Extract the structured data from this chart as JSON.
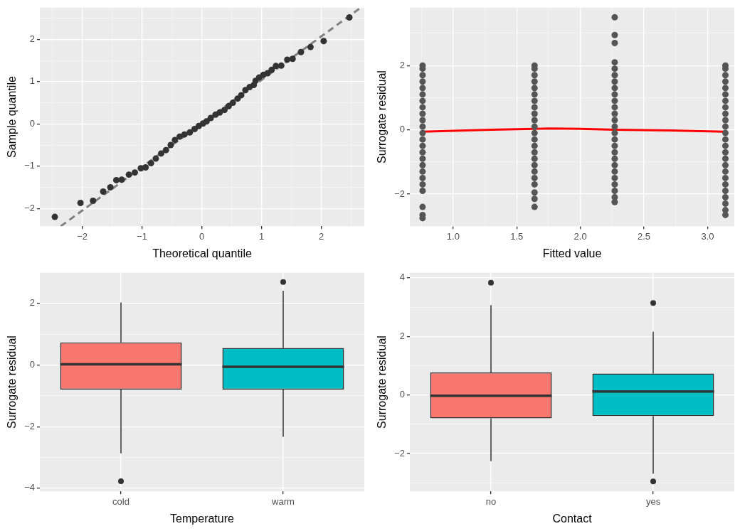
{
  "chart_data": [
    {
      "type": "scatter",
      "xlabel": "Theoretical quantile",
      "ylabel": "Sample quantile",
      "xlim": [
        -2.71,
        2.72
      ],
      "ylim": [
        -2.42,
        2.75
      ],
      "xticks": [
        {
          "value": -2.5,
          "label": null
        },
        {
          "value": -2,
          "label": "−2"
        },
        {
          "value": -1.5,
          "label": null
        },
        {
          "value": -1,
          "label": "−1"
        },
        {
          "value": -0.5,
          "label": null
        },
        0,
        {
          "value": 0.5,
          "label": null
        },
        1,
        {
          "value": 1.5,
          "label": null
        },
        2,
        {
          "value": 2.5,
          "label": null
        }
      ],
      "yticks": [
        {
          "value": -2,
          "label": "−2"
        },
        {
          "value": -1.5,
          "label": null
        },
        {
          "value": -1,
          "label": "−1"
        },
        {
          "value": -0.5,
          "label": null
        },
        0,
        {
          "value": 0.5,
          "label": null
        },
        1,
        {
          "value": 1.5,
          "label": null
        },
        2,
        {
          "value": 2.5,
          "label": null
        }
      ],
      "grid": true,
      "marker": "circle",
      "series": [
        {
          "type": "scatter",
          "color": "#333333",
          "x": [
            -2.46,
            -2.03,
            -1.82,
            -1.65,
            -1.53,
            -1.43,
            -1.34,
            -1.22,
            -1.12,
            -1.02,
            -0.94,
            -0.85,
            -0.77,
            -0.68,
            -0.6,
            -0.52,
            -0.45,
            -0.37,
            -0.29,
            -0.2,
            -0.12,
            -0.05,
            0.02,
            0.08,
            0.15,
            0.23,
            0.3,
            0.38,
            0.45,
            0.52,
            0.6,
            0.66,
            0.73,
            0.8,
            0.87,
            0.9,
            0.96,
            1.03,
            1.1,
            1.17,
            1.24,
            1.33,
            1.43,
            1.52,
            1.66,
            1.82,
            2.04,
            2.47
          ],
          "values": [
            -2.2,
            -1.87,
            -1.82,
            -1.6,
            -1.5,
            -1.33,
            -1.32,
            -1.2,
            -1.15,
            -1.05,
            -1.03,
            -0.93,
            -0.82,
            -0.7,
            -0.62,
            -0.5,
            -0.38,
            -0.3,
            -0.25,
            -0.2,
            -0.12,
            -0.05,
            0.01,
            0.06,
            0.14,
            0.22,
            0.27,
            0.33,
            0.42,
            0.5,
            0.6,
            0.68,
            0.8,
            0.87,
            0.92,
            1.02,
            1.1,
            1.16,
            1.2,
            1.28,
            1.37,
            1.38,
            1.52,
            1.54,
            1.7,
            1.82,
            1.96,
            2.52
          ]
        },
        {
          "type": "line",
          "color": "#808080",
          "line_style": "dashed",
          "marker": "none",
          "x": [
            -2.36,
            2.66
          ],
          "values": [
            -2.42,
            2.75
          ]
        }
      ]
    },
    {
      "type": "scatter",
      "xlabel": "Fitted value",
      "ylabel": "Surrogate residual",
      "xlim": [
        0.66,
        3.21
      ],
      "ylim": [
        -3.0,
        3.8
      ],
      "xticks": [
        {
          "value": 0.75,
          "label": null
        },
        {
          "value": 1,
          "label": "1.0"
        },
        {
          "value": 1.25,
          "label": null
        },
        1.5,
        {
          "value": 1.75,
          "label": null
        },
        {
          "value": 2,
          "label": "2.0"
        },
        {
          "value": 2.25,
          "label": null
        },
        2.5,
        {
          "value": 2.75,
          "label": null
        },
        {
          "value": 3,
          "label": "3.0"
        }
      ],
      "yticks": [
        {
          "value": -3,
          "label": null
        },
        {
          "value": -2,
          "label": "−2"
        },
        {
          "value": -1,
          "label": null
        },
        0,
        {
          "value": 1,
          "label": null
        },
        2,
        {
          "value": 3,
          "label": null
        }
      ],
      "grid": true,
      "marker": "circle",
      "series": [
        {
          "type": "scatter",
          "color": "#555555",
          "x": [
            0.76,
            0.76,
            0.76,
            0.76,
            0.76,
            0.76,
            0.76,
            0.76,
            0.76,
            0.76,
            0.76,
            0.76,
            0.76,
            0.76,
            0.76,
            0.76,
            0.76,
            0.76,
            0.76,
            0.76,
            0.76,
            0.76,
            0.76,
            0.76,
            1.64,
            1.64,
            1.64,
            1.64,
            1.64,
            1.64,
            1.64,
            1.64,
            1.64,
            1.64,
            1.64,
            1.64,
            1.64,
            1.64,
            1.64,
            1.64,
            1.64,
            1.64,
            1.64,
            1.64,
            1.64,
            1.64,
            1.64,
            2.27,
            2.27,
            2.27,
            2.27,
            2.27,
            2.27,
            2.27,
            2.27,
            2.27,
            2.27,
            2.27,
            2.27,
            2.27,
            2.27,
            2.27,
            2.27,
            2.27,
            2.27,
            2.27,
            2.27,
            2.27,
            2.27,
            2.27,
            2.27,
            2.27,
            2.27,
            3.14,
            3.14,
            3.14,
            3.14,
            3.14,
            3.14,
            3.14,
            3.14,
            3.14,
            3.14,
            3.14,
            3.14,
            3.14,
            3.14,
            3.14,
            3.14,
            3.14,
            3.14,
            3.14,
            3.14,
            3.14,
            3.14,
            3.14,
            3.14,
            3.14
          ],
          "values": [
            -2.75,
            -2.65,
            -2.4,
            -1.9,
            -1.7,
            -1.5,
            -1.3,
            -1.1,
            -0.9,
            -0.7,
            -0.5,
            -0.3,
            -0.1,
            0.1,
            0.3,
            0.5,
            0.7,
            0.9,
            1.1,
            1.3,
            1.5,
            1.7,
            1.9,
            2.0,
            -2.4,
            -2.15,
            -1.95,
            -1.7,
            -1.5,
            -1.3,
            -1.1,
            -0.9,
            -0.7,
            -0.5,
            -0.3,
            -0.1,
            0.1,
            0.3,
            0.5,
            0.7,
            0.9,
            1.1,
            1.3,
            1.5,
            1.7,
            1.9,
            2.0,
            -2.25,
            -2.1,
            -1.9,
            -1.7,
            -1.5,
            -1.3,
            -1.1,
            -0.9,
            -0.7,
            -0.5,
            -0.3,
            -0.1,
            0.1,
            0.3,
            0.5,
            0.7,
            0.9,
            1.1,
            1.3,
            1.5,
            1.7,
            1.9,
            2.1,
            2.7,
            2.95,
            3.5,
            -2.65,
            -2.5,
            -2.3,
            -2.1,
            -1.9,
            -1.7,
            -1.5,
            -1.3,
            -1.1,
            -0.9,
            -0.7,
            -0.5,
            -0.3,
            -0.1,
            0.1,
            0.3,
            0.5,
            0.7,
            0.9,
            1.1,
            1.3,
            1.5,
            1.7,
            1.9,
            2.0
          ]
        },
        {
          "type": "line",
          "color": "#ff0000",
          "line_style": "solid",
          "marker": "none",
          "x": [
            0.76,
            1.0,
            1.3,
            1.64,
            1.75,
            2.0,
            2.27,
            2.7,
            3.14
          ],
          "values": [
            -0.06,
            -0.03,
            0.0,
            0.03,
            0.04,
            0.03,
            0.0,
            -0.02,
            -0.06
          ]
        }
      ]
    },
    {
      "type": "box",
      "xlabel": "Temperature",
      "ylabel": "Surrogate residual",
      "categories": [
        "cold",
        "warm"
      ],
      "colors": [
        "#f8766d",
        "#00bfc4"
      ],
      "ylim": [
        -4.1,
        2.99
      ],
      "yticks": [
        {
          "value": -4,
          "label": "−4"
        },
        {
          "value": -3,
          "label": null
        },
        {
          "value": -2,
          "label": "−2"
        },
        {
          "value": -1,
          "label": null
        },
        0,
        {
          "value": 1,
          "label": null
        },
        2
      ],
      "grid": true,
      "boxes": [
        {
          "low": -2.87,
          "q1": -0.8,
          "median": 0.02,
          "q3": 0.73,
          "high": 2.03,
          "outliers": [
            -3.77
          ]
        },
        {
          "low": -2.33,
          "q1": -0.8,
          "median": -0.06,
          "q3": 0.55,
          "high": 2.41,
          "outliers": [
            2.69
          ]
        }
      ]
    },
    {
      "type": "box",
      "xlabel": "Contact",
      "ylabel": "Surrogate residual",
      "categories": [
        "no",
        "yes"
      ],
      "colors": [
        "#f8766d",
        "#00bfc4"
      ],
      "ylim": [
        -3.29,
        4.17
      ],
      "yticks": [
        {
          "value": -3,
          "label": null
        },
        {
          "value": -2,
          "label": "−2"
        },
        {
          "value": -1,
          "label": null
        },
        0,
        {
          "value": 1,
          "label": null
        },
        2,
        {
          "value": 3,
          "label": null
        },
        4
      ],
      "grid": true,
      "boxes": [
        {
          "low": -2.26,
          "q1": -0.8,
          "median": -0.03,
          "q3": 0.77,
          "high": 3.07,
          "outliers": [
            3.83
          ]
        },
        {
          "low": -2.69,
          "q1": -0.72,
          "median": 0.12,
          "q3": 0.73,
          "high": 2.16,
          "outliers": [
            3.14,
            -2.95
          ]
        }
      ]
    }
  ]
}
